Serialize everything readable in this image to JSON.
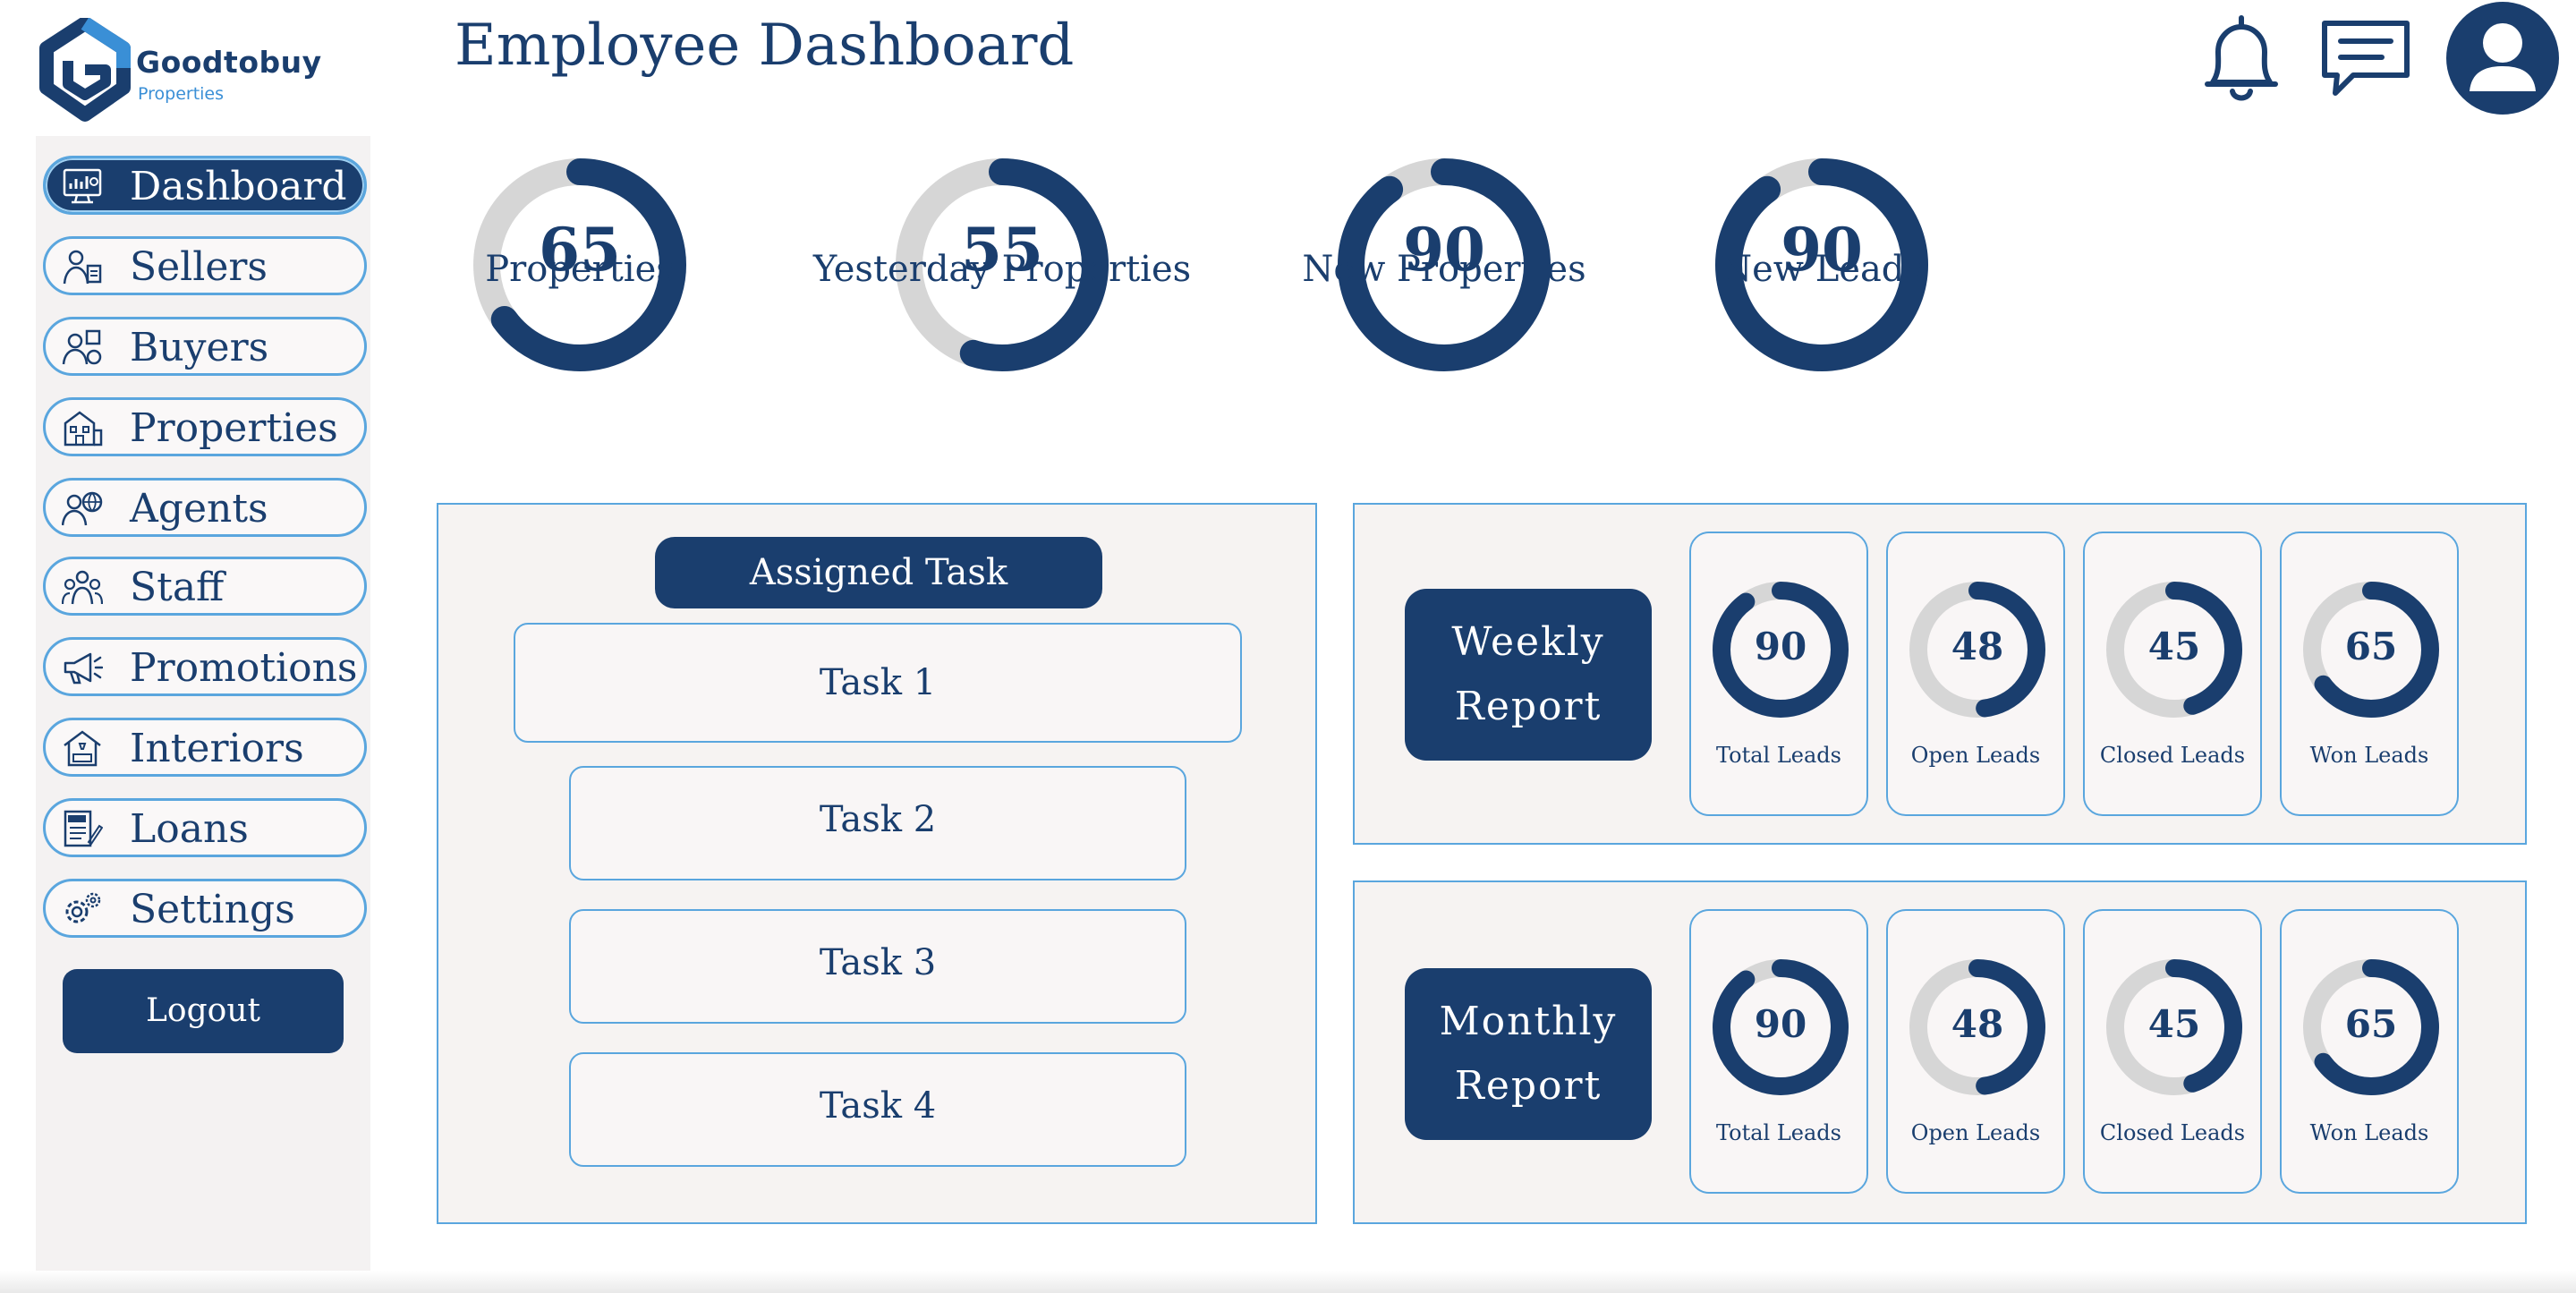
{
  "brand": {
    "name": "Goodtobuy",
    "sub": "Properties"
  },
  "page_title": "Employee Dashboard",
  "colors": {
    "navy": "#1a3e6e",
    "accent_blue": "#5aa6de",
    "ring_track": "#d6d6d6",
    "panel_bg": "#f6f3f2"
  },
  "header_icons": [
    "bell-icon",
    "chat-icon",
    "user-avatar-icon"
  ],
  "sidebar": {
    "items": [
      {
        "label": "Dashboard",
        "icon": "dashboard-monitor-icon",
        "active": true
      },
      {
        "label": "Sellers",
        "icon": "seller-person-icon"
      },
      {
        "label": "Buyers",
        "icon": "buyer-person-icon"
      },
      {
        "label": "Properties",
        "icon": "building-icon"
      },
      {
        "label": "Agents",
        "icon": "agent-globe-icon"
      },
      {
        "label": "Staff",
        "icon": "staff-group-icon"
      },
      {
        "label": "Promotions",
        "icon": "megaphone-icon"
      },
      {
        "label": "Interiors",
        "icon": "interior-house-icon"
      },
      {
        "label": "Loans",
        "icon": "loan-document-icon"
      },
      {
        "label": "Settings",
        "icon": "gear-icon"
      }
    ],
    "logout_label": "Logout"
  },
  "stats": [
    {
      "value": "65",
      "label": "Properties",
      "progress": 0.65
    },
    {
      "value": "55",
      "label": "Yesterday Properties",
      "progress": 0.55
    },
    {
      "value": "90",
      "label": "New Properties",
      "progress": 0.9
    },
    {
      "value": "90",
      "label": "New Leads",
      "progress": 0.9
    }
  ],
  "tasks": {
    "header": "Assigned Task",
    "items": [
      "Task 1",
      "Task 2",
      "Task 3",
      "Task 4"
    ]
  },
  "weekly_report": {
    "title_line1": "Weekly",
    "title_line2": "Report",
    "metrics": [
      {
        "value": "90",
        "label": "Total Leads",
        "progress": 0.9
      },
      {
        "value": "48",
        "label": "Open Leads",
        "progress": 0.48
      },
      {
        "value": "45",
        "label": "Closed Leads",
        "progress": 0.45
      },
      {
        "value": "65",
        "label": "Won Leads",
        "progress": 0.65
      }
    ]
  },
  "monthly_report": {
    "title_line1": "Monthly",
    "title_line2": "Report",
    "metrics": [
      {
        "value": "90",
        "label": "Total Leads",
        "progress": 0.9
      },
      {
        "value": "48",
        "label": "Open Leads",
        "progress": 0.48
      },
      {
        "value": "45",
        "label": "Closed Leads",
        "progress": 0.45
      },
      {
        "value": "65",
        "label": "Won Leads",
        "progress": 0.65
      }
    ]
  }
}
